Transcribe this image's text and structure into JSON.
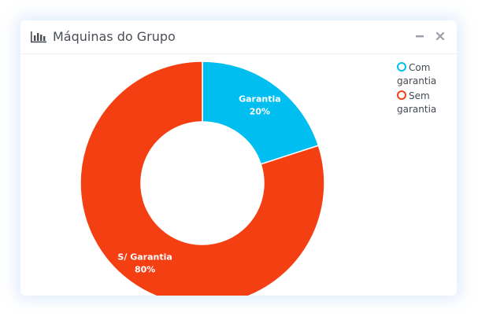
{
  "widget": {
    "title": "Máquinas do Grupo",
    "title_icon": "bar-chart-icon",
    "minimize_icon": "minimize-icon",
    "close_icon": "close-icon"
  },
  "colors": {
    "com_garantia": "#00bef0",
    "sem_garantia": "#f43f12",
    "title_text": "#4a4f56",
    "header_buttons": "#9aa0a8"
  },
  "chart_data": {
    "type": "pie",
    "variant": "donut",
    "legend_position": "top-right",
    "slices": [
      {
        "legend": "Com garantia",
        "label": "Garantia",
        "value": 20,
        "value_label": "20%",
        "color": "#00bef0"
      },
      {
        "legend": "Sem garantia",
        "label": "S/ Garantia",
        "value": 80,
        "value_label": "80%",
        "color": "#f43f12"
      }
    ]
  }
}
